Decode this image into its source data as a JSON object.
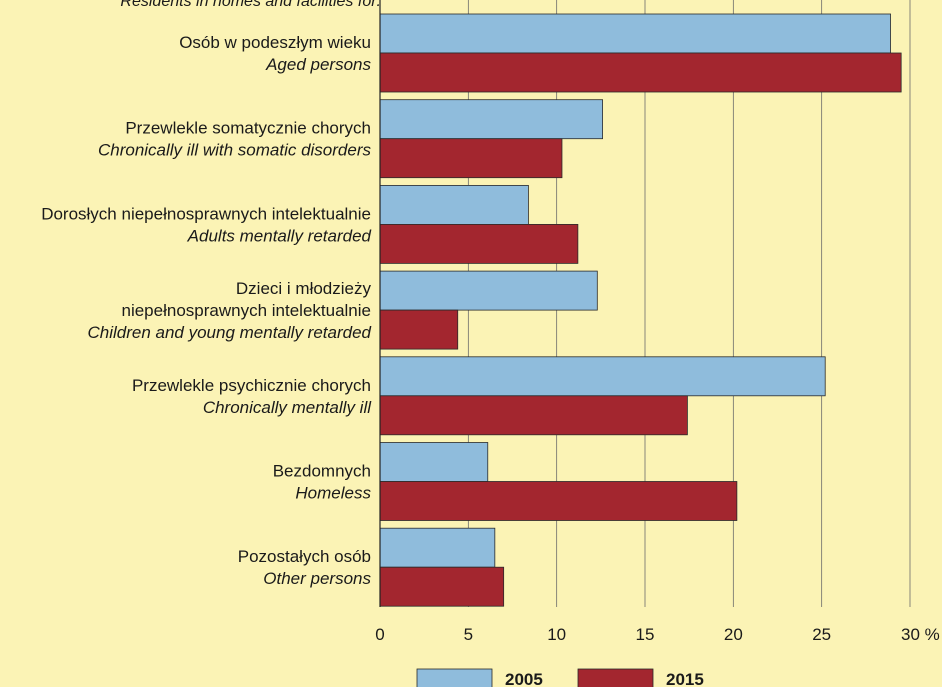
{
  "chart_data": {
    "type": "bar",
    "orientation": "horizontal",
    "header_note": "Residents in homes and facilities for:",
    "categories": [
      {
        "pl": [
          "Osób w podeszłym wieku"
        ],
        "en": "Aged persons"
      },
      {
        "pl": [
          "Przewlekle somatycznie chorych"
        ],
        "en": "Chronically ill with somatic disorders"
      },
      {
        "pl": [
          "Dorosłych niepełnosprawnych intelektualnie"
        ],
        "en": "Adults mentally retarded"
      },
      {
        "pl": [
          "Dzieci i młodzieży",
          "niepełnosprawnych intelektualnie"
        ],
        "en": "Children and young mentally retarded"
      },
      {
        "pl": [
          "Przewlekle psychicznie chorych"
        ],
        "en": "Chronically mentally ill"
      },
      {
        "pl": [
          "Bezdomnych"
        ],
        "en": "Homeless"
      },
      {
        "pl": [
          "Pozostałych osób"
        ],
        "en": "Other persons"
      }
    ],
    "series": [
      {
        "name": "2005",
        "color": "#8fbcdc",
        "values": [
          28.9,
          12.6,
          8.4,
          12.3,
          25.2,
          6.1,
          6.5
        ]
      },
      {
        "name": "2015",
        "color": "#a3262f",
        "values": [
          29.5,
          10.3,
          11.2,
          4.4,
          17.4,
          20.2,
          7.0
        ]
      }
    ],
    "xlim": [
      0,
      30
    ],
    "xticks": [
      "0",
      "5",
      "10",
      "15",
      "20",
      "25",
      "30 %"
    ],
    "grid": true,
    "legend_position": "bottom"
  }
}
